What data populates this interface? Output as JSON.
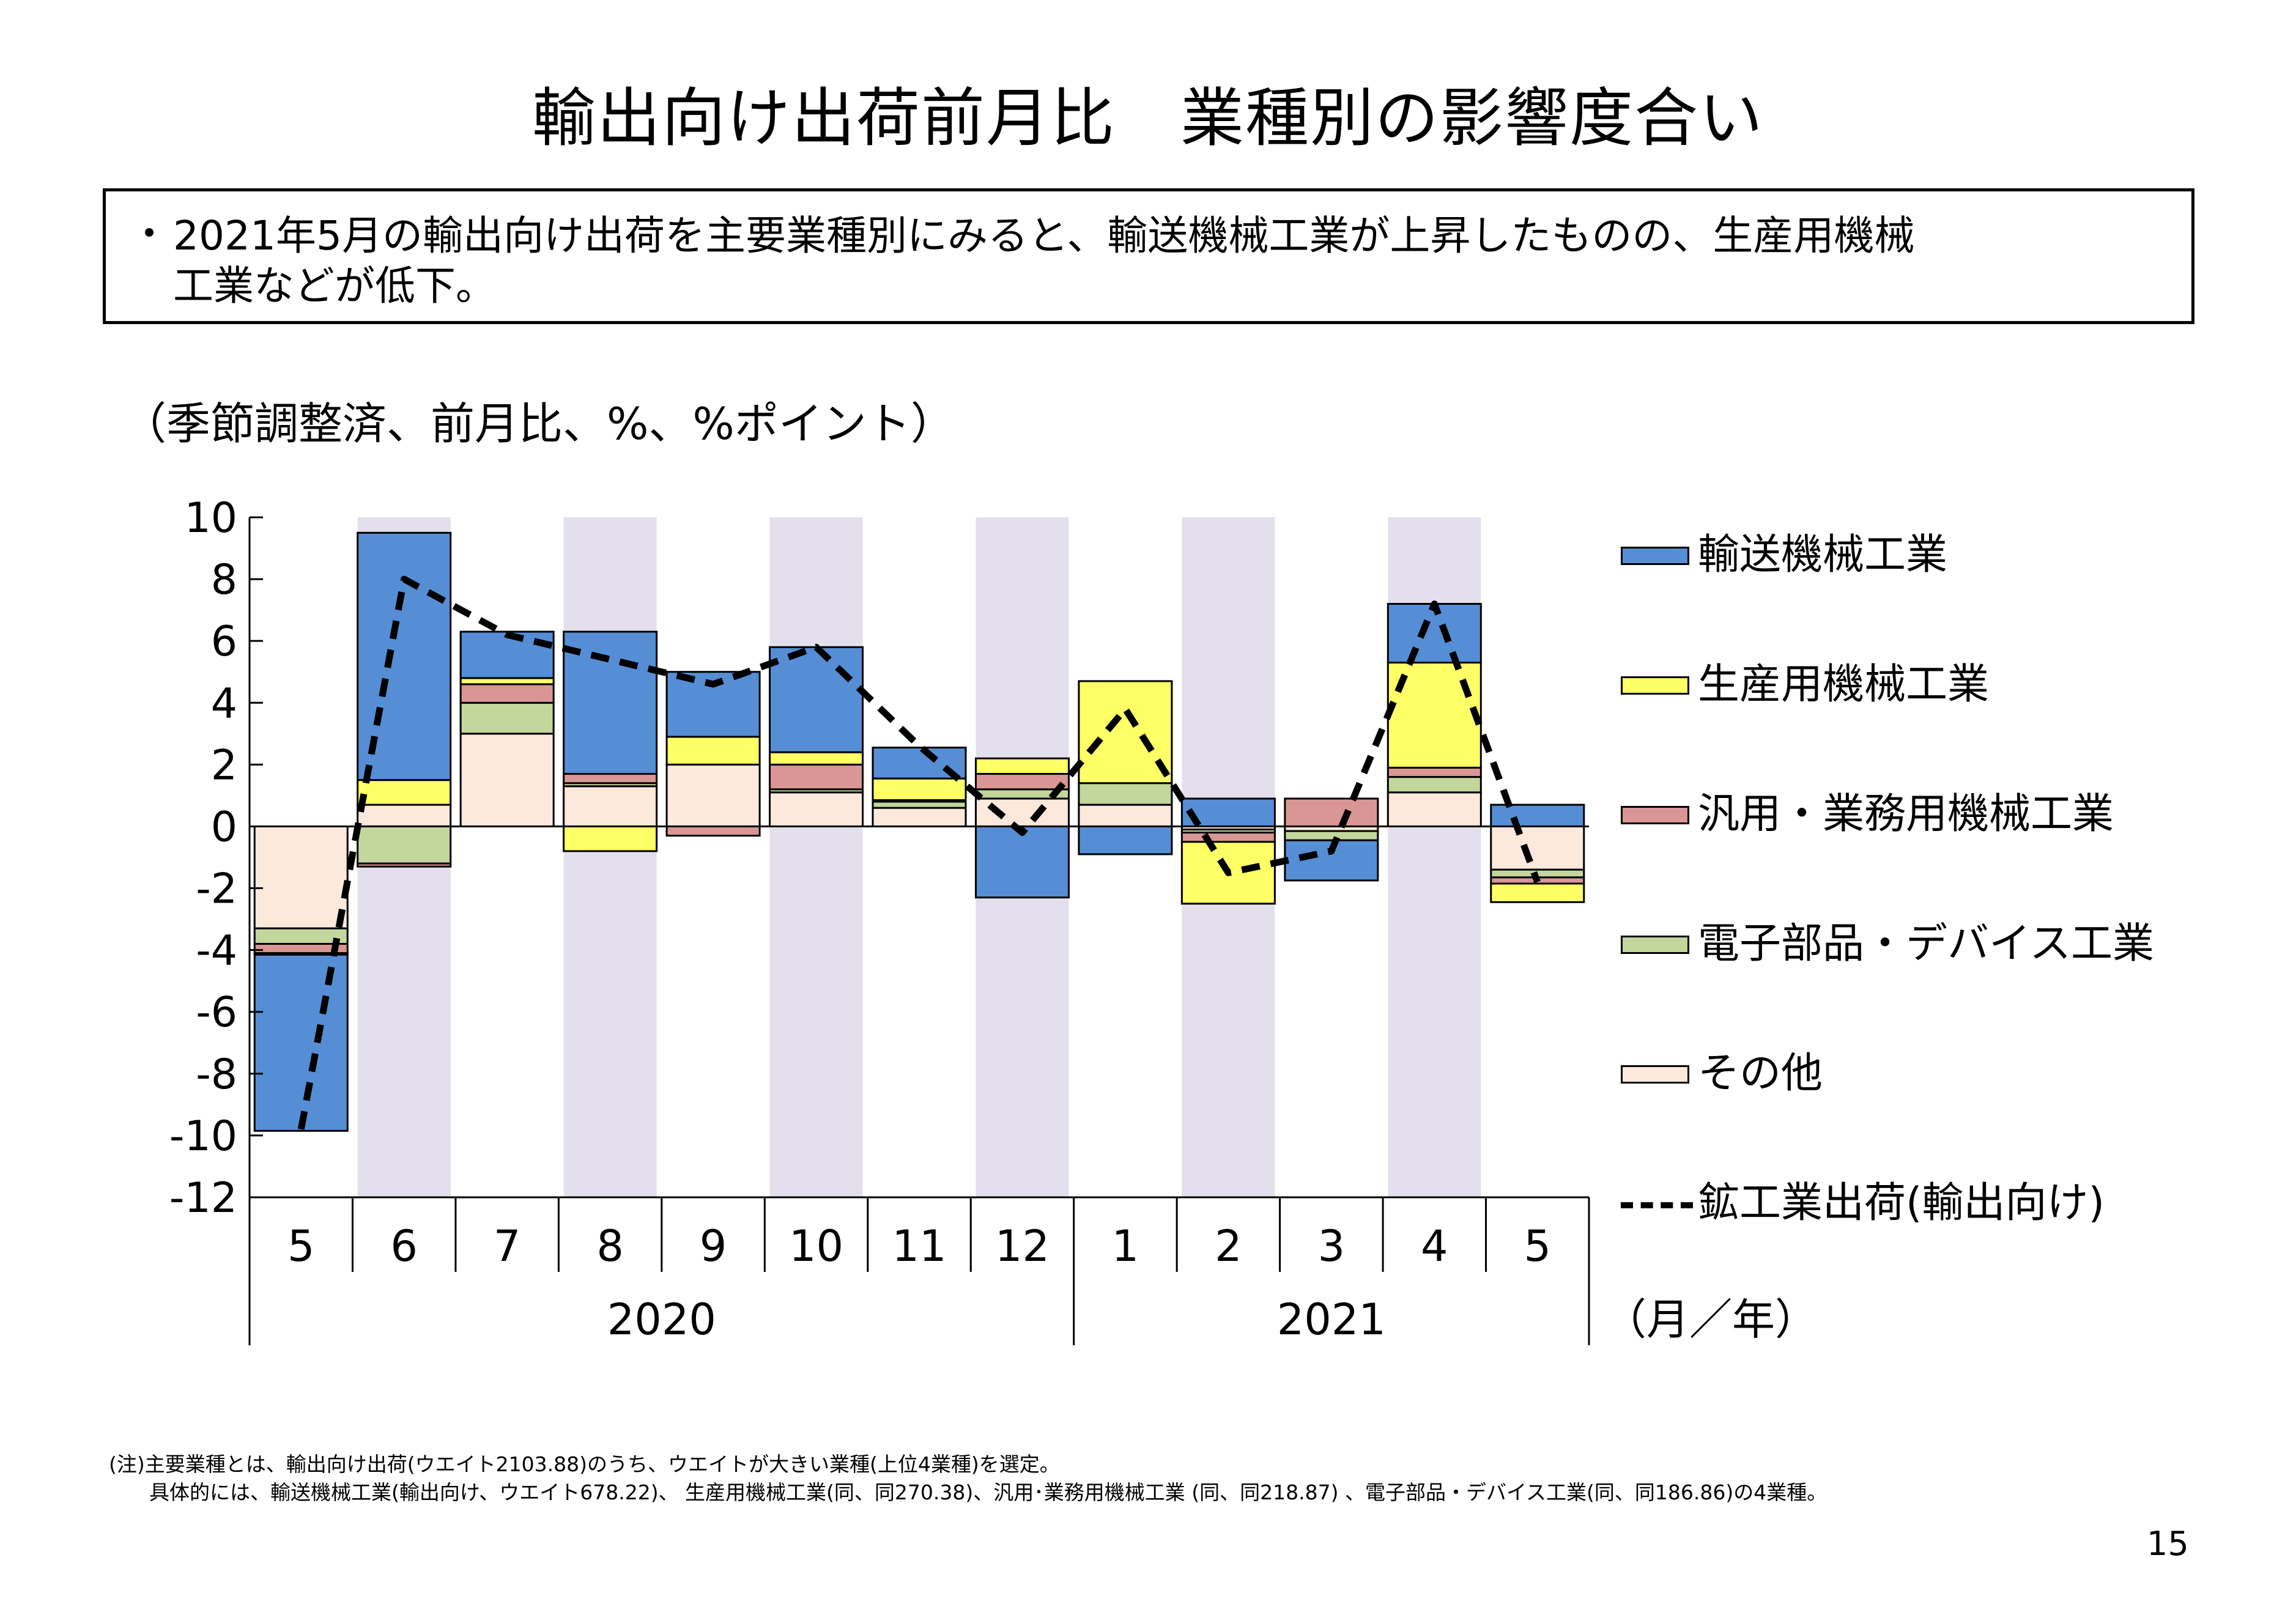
{
  "title": "輸出向け出荷前月比　業種別の影響度合い",
  "summary": {
    "bullet": "・",
    "text": "2021年5月の輸出向け出荷を主要業種別にみると、輸送機械工業が上昇したものの、生産用機械\n工業などが低下。"
  },
  "unit_label": "（季節調整済、前月比、%、%ポイント）",
  "chart_data": {
    "type": "bar",
    "stacked": true,
    "categories": [
      "5",
      "6",
      "7",
      "8",
      "9",
      "10",
      "11",
      "12",
      "1",
      "2",
      "3",
      "4",
      "5"
    ],
    "year_groups": [
      {
        "label": "2020",
        "from": 0,
        "to": 7
      },
      {
        "label": "2021",
        "from": 8,
        "to": 12
      }
    ],
    "xlabel": "（月／年）",
    "ylim": [
      -12,
      10
    ],
    "yticks": [
      10,
      8,
      6,
      4,
      2,
      0,
      -2,
      -4,
      -6,
      -8,
      -10,
      -12
    ],
    "shaded_categories": [
      1,
      3,
      5,
      7,
      9,
      11
    ],
    "series": [
      {
        "name": "その他",
        "color": "#fde9dc",
        "values": [
          -3.3,
          0.7,
          3.0,
          1.3,
          2.0,
          1.1,
          0.6,
          0.9,
          0.7,
          -0.1,
          -0.15,
          1.1,
          -1.4
        ]
      },
      {
        "name": "電子部品・デバイス工業",
        "color": "#c3d69b",
        "values": [
          -0.5,
          -1.2,
          1.0,
          0.1,
          0.0,
          0.1,
          0.2,
          0.3,
          0.7,
          -0.1,
          -0.3,
          0.5,
          -0.25
        ]
      },
      {
        "name": "汎用・業務用機械工業",
        "color": "#da9694",
        "values": [
          -0.3,
          -0.1,
          0.6,
          0.3,
          -0.3,
          0.8,
          0.05,
          0.5,
          0.0,
          -0.3,
          0.9,
          0.3,
          -0.2
        ]
      },
      {
        "name": "生産用機械工業",
        "color": "#ffff66",
        "values": [
          -0.05,
          0.8,
          0.2,
          -0.8,
          0.9,
          0.4,
          0.7,
          0.5,
          3.3,
          -2.0,
          0.0,
          3.4,
          -0.6
        ]
      },
      {
        "name": "輸送機械工業",
        "color": "#558ed5",
        "values": [
          -5.7,
          8.0,
          1.5,
          4.6,
          2.1,
          3.4,
          1.0,
          -2.3,
          -0.9,
          0.9,
          -1.3,
          1.9,
          0.7
        ]
      }
    ],
    "line": {
      "name": "鉱工業出荷（輸出向け）",
      "values": [
        -9.8,
        8.0,
        6.2,
        5.4,
        4.6,
        5.8,
        2.6,
        -0.2,
        3.8,
        -1.5,
        -0.8,
        7.2,
        -1.8
      ]
    },
    "legend": [
      {
        "name": "輸送機械工業",
        "color": "#558ed5"
      },
      {
        "name": "生産用機械工業",
        "color": "#ffff66"
      },
      {
        "name": "汎用・業務用機械工業",
        "color": "#da9694"
      },
      {
        "name": "電子部品・デバイス工業",
        "color": "#c3d69b"
      },
      {
        "name": "その他",
        "color": "#fde9dc"
      },
      {
        "name": "鉱工業出荷(輸出向け)",
        "color": "#000000",
        "style": "dashed"
      }
    ],
    "colors": {
      "shade": "#e4dfec",
      "axis": "#000000"
    }
  },
  "note": "(注)主要業種とは、輸出向け出荷(ウエイト2103.88)のうち、ウエイトが大きい業種(上位4業種)を選定。\n　　具体的には、輸送機械工業(輸出向け、ウエイト678.22)、 生産用機械工業(同、同270.38)、汎用･業務用機械工業 (同、同218.87) 、電子部品・デバイス工業(同、同186.86)の4業種。",
  "page_number": "15"
}
